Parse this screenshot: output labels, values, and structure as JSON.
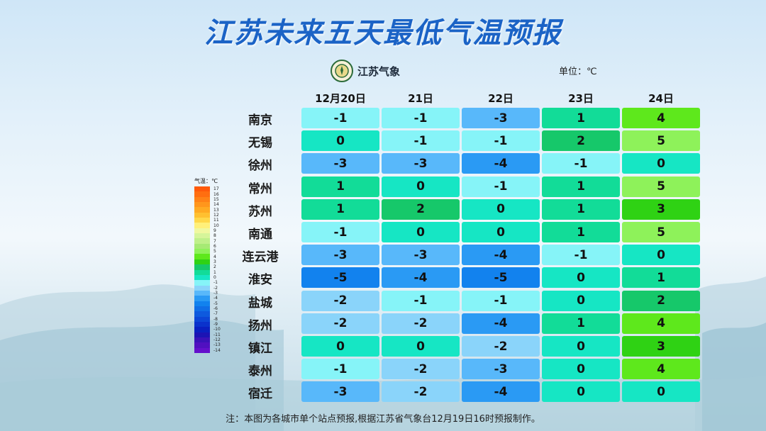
{
  "title": "江苏未来五天最低气温预报",
  "logo_text": "江苏气象",
  "unit": "单位：℃",
  "dates": [
    "12月20日",
    "21日",
    "22日",
    "23日",
    "24日"
  ],
  "cities": [
    {
      "name": "南京",
      "temps": [
        -1,
        -1,
        -3,
        1,
        4
      ]
    },
    {
      "name": "无锡",
      "temps": [
        0,
        -1,
        -1,
        2,
        5
      ]
    },
    {
      "name": "徐州",
      "temps": [
        -3,
        -3,
        -4,
        -1,
        0
      ]
    },
    {
      "name": "常州",
      "temps": [
        1,
        0,
        -1,
        1,
        5
      ]
    },
    {
      "name": "苏州",
      "temps": [
        1,
        2,
        0,
        1,
        3
      ]
    },
    {
      "name": "南通",
      "temps": [
        -1,
        0,
        0,
        1,
        5
      ]
    },
    {
      "name": "连云港",
      "temps": [
        -3,
        -3,
        -4,
        -1,
        0
      ]
    },
    {
      "name": "淮安",
      "temps": [
        -5,
        -4,
        -5,
        0,
        1
      ]
    },
    {
      "name": "盐城",
      "temps": [
        -2,
        -1,
        -1,
        0,
        2
      ]
    },
    {
      "name": "扬州",
      "temps": [
        -2,
        -2,
        -4,
        1,
        4
      ]
    },
    {
      "name": "镇江",
      "temps": [
        0,
        0,
        -2,
        0,
        3
      ]
    },
    {
      "name": "泰州",
      "temps": [
        -1,
        -2,
        -3,
        0,
        4
      ]
    },
    {
      "name": "宿迁",
      "temps": [
        -3,
        -2,
        -4,
        0,
        0
      ]
    }
  ],
  "legend": {
    "title": "气温：℃",
    "levels": [
      {
        "label": "17",
        "color": "#ff5a0a"
      },
      {
        "label": "16",
        "color": "#ff6e10"
      },
      {
        "label": "15",
        "color": "#ff8216"
      },
      {
        "label": "14",
        "color": "#ff961c"
      },
      {
        "label": "13",
        "color": "#ffaa22"
      },
      {
        "label": "12",
        "color": "#ffc030"
      },
      {
        "label": "11",
        "color": "#ffd84a"
      },
      {
        "label": "10",
        "color": "#fff07a"
      },
      {
        "label": "9",
        "color": "#f0f8a0"
      },
      {
        "label": "8",
        "color": "#d6f59a"
      },
      {
        "label": "7",
        "color": "#bff08a"
      },
      {
        "label": "6",
        "color": "#a6ea74"
      },
      {
        "label": "5",
        "color": "#8ef25a"
      },
      {
        "label": "4",
        "color": "#5ee81c"
      },
      {
        "label": "3",
        "color": "#2fd214"
      },
      {
        "label": "2",
        "color": "#16c86a"
      },
      {
        "label": "1",
        "color": "#12dc98"
      },
      {
        "label": "0",
        "color": "#16e6c4"
      },
      {
        "label": "-1",
        "color": "#86f4f8"
      },
      {
        "label": "-2",
        "color": "#8ad4fa"
      },
      {
        "label": "-3",
        "color": "#58b8fa"
      },
      {
        "label": "-4",
        "color": "#2a9af4"
      },
      {
        "label": "-5",
        "color": "#1282ee"
      },
      {
        "label": "-6",
        "color": "#106ee6"
      },
      {
        "label": "-7",
        "color": "#0e5ade"
      },
      {
        "label": "-8",
        "color": "#0c46d6"
      },
      {
        "label": "-9",
        "color": "#0a32cc"
      },
      {
        "label": "-10",
        "color": "#0a20c0"
      },
      {
        "label": "-11",
        "color": "#1c14b4"
      },
      {
        "label": "-12",
        "color": "#3a12b8"
      },
      {
        "label": "-13",
        "color": "#5010c0"
      },
      {
        "label": "-14",
        "color": "#6410cc"
      }
    ]
  },
  "note": "注：本图为各城市单个站点预报,根据江苏省气象台12月19日16时预报制作。"
}
